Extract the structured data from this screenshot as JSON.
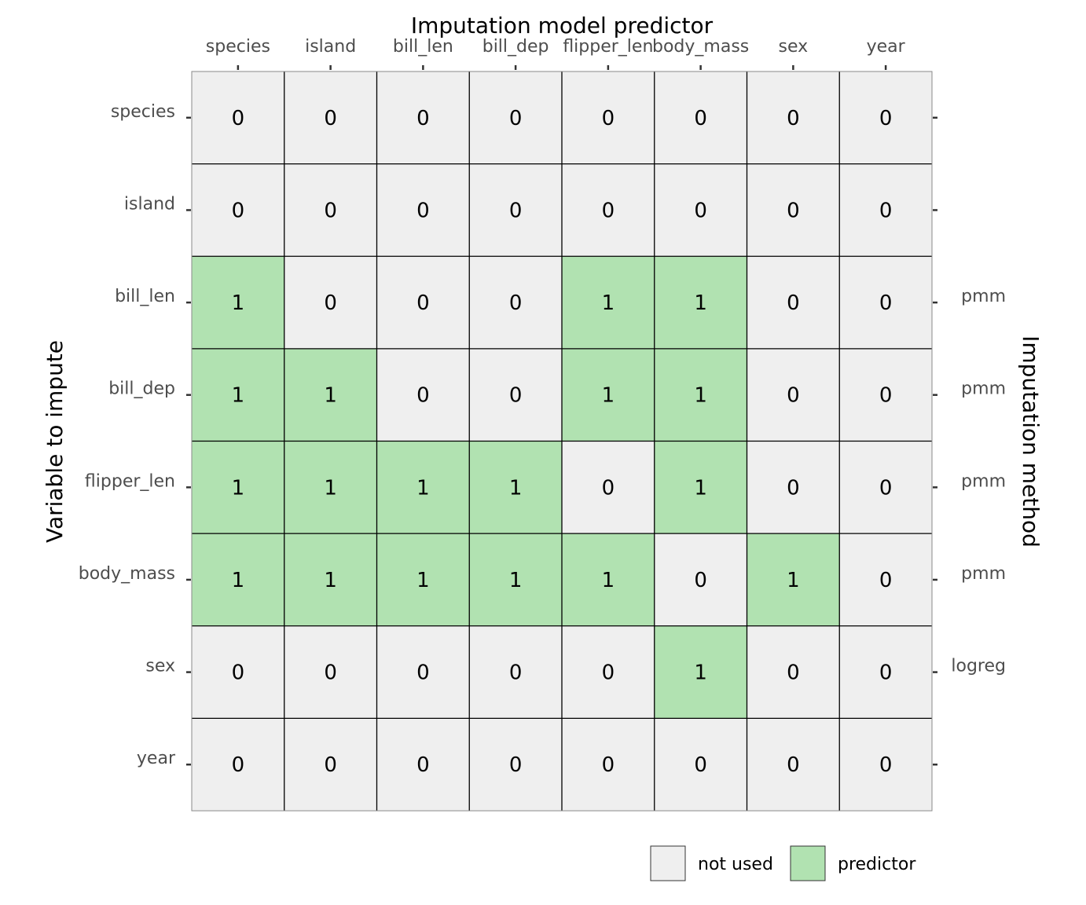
{
  "chart_data": {
    "type": "heatmap",
    "top_axis_title": "Imputation model predictor",
    "left_axis_title": "Variable to impute",
    "right_axis_title": "Imputation method",
    "columns": [
      "species",
      "island",
      "bill_len",
      "bill_dep",
      "flipper_len",
      "body_mass",
      "sex",
      "year"
    ],
    "rows": [
      "species",
      "island",
      "bill_len",
      "bill_dep",
      "flipper_len",
      "body_mass",
      "sex",
      "year"
    ],
    "methods": [
      "",
      "",
      "pmm",
      "pmm",
      "pmm",
      "pmm",
      "logreg",
      ""
    ],
    "matrix": [
      [
        0,
        0,
        0,
        0,
        0,
        0,
        0,
        0
      ],
      [
        0,
        0,
        0,
        0,
        0,
        0,
        0,
        0
      ],
      [
        1,
        0,
        0,
        0,
        1,
        1,
        0,
        0
      ],
      [
        1,
        1,
        0,
        0,
        1,
        1,
        0,
        0
      ],
      [
        1,
        1,
        1,
        1,
        0,
        1,
        0,
        0
      ],
      [
        1,
        1,
        1,
        1,
        1,
        0,
        1,
        0
      ],
      [
        0,
        0,
        0,
        0,
        0,
        1,
        0,
        0
      ],
      [
        0,
        0,
        0,
        0,
        0,
        0,
        0,
        0
      ]
    ],
    "legend": [
      {
        "value": 0,
        "label": "not used",
        "color": "#efefef"
      },
      {
        "value": 1,
        "label": "predictor",
        "color": "#b1e2b1"
      }
    ],
    "grid_line_color": "#000000",
    "legend_position": "bottom-right"
  }
}
